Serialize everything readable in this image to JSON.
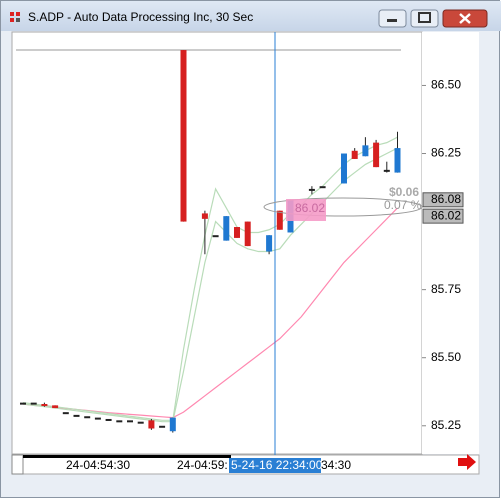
{
  "window": {
    "title": "S.ADP - Auto Data Processing Inc, 30 Sec"
  },
  "chart_data": {
    "type": "candlestick",
    "categories": [
      null,
      null,
      null,
      null,
      null,
      null,
      null,
      "24-04:54:30",
      null,
      null,
      null,
      null,
      null,
      null,
      null,
      "24-04:59:",
      null,
      null,
      null,
      null,
      null,
      null,
      null,
      "5-24-16 22:34:00",
      null,
      null,
      null,
      null,
      null,
      "34:30",
      null,
      null,
      null,
      null,
      null,
      null
    ],
    "open": [
      85.335,
      85.335,
      85.33,
      85.325,
      85.3,
      85.29,
      85.285,
      85.28,
      85.275,
      85.27,
      85.27,
      85.265,
      85.27,
      85.25,
      85.23,
      86.63,
      null,
      86.03,
      85.95,
      85.93,
      85.98,
      86.0,
      null,
      85.89,
      86.04,
      85.96,
      null,
      86.12,
      86.13,
      null,
      86.14,
      86.26,
      86.24,
      86.29,
      86.19,
      86.18
    ],
    "high": [
      85.335,
      85.335,
      85.335,
      85.325,
      85.3,
      85.29,
      85.285,
      85.28,
      85.275,
      85.27,
      85.27,
      85.265,
      85.275,
      85.25,
      85.28,
      86.63,
      null,
      86.04,
      85.95,
      86.02,
      85.98,
      86.0,
      null,
      85.95,
      86.04,
      86.08,
      null,
      86.13,
      86.13,
      null,
      86.25,
      86.27,
      86.31,
      86.3,
      86.22,
      86.33
    ],
    "low": [
      85.335,
      85.335,
      85.32,
      85.315,
      85.3,
      85.29,
      85.285,
      85.28,
      85.275,
      85.27,
      85.27,
      85.265,
      85.235,
      85.25,
      85.225,
      86.0,
      null,
      85.88,
      85.95,
      85.93,
      85.94,
      85.91,
      null,
      85.88,
      85.97,
      85.96,
      null,
      86.1,
      86.13,
      null,
      86.14,
      86.23,
      86.24,
      86.2,
      86.18,
      86.18
    ],
    "close": [
      85.335,
      85.335,
      85.325,
      85.315,
      85.3,
      85.29,
      85.285,
      85.28,
      85.275,
      85.27,
      85.27,
      85.265,
      85.24,
      85.25,
      85.28,
      86.0,
      null,
      86.01,
      85.95,
      86.02,
      85.94,
      85.91,
      null,
      85.95,
      85.97,
      86.08,
      null,
      86.12,
      86.13,
      null,
      86.25,
      86.23,
      86.28,
      86.2,
      86.19,
      86.27
    ],
    "up_color": "#1f78d1",
    "down_color": "#d62020",
    "series": [
      {
        "color": "#ff88b0",
        "values": [
          85.33,
          85.325,
          85.322,
          85.318,
          85.314,
          85.31,
          85.306,
          85.302,
          85.298,
          85.295,
          85.292,
          85.289,
          85.286,
          85.283,
          85.28,
          85.3,
          85.33,
          85.36,
          85.39,
          85.42,
          85.45,
          85.48,
          85.51,
          85.54,
          85.57,
          85.61,
          85.65,
          85.7,
          85.75,
          85.8,
          85.85,
          85.89,
          85.93,
          85.97,
          86.01,
          86.05
        ]
      },
      {
        "color": "#b9dcb9",
        "values": [
          85.335,
          85.33,
          85.325,
          85.32,
          85.315,
          85.31,
          85.305,
          85.3,
          85.295,
          85.29,
          85.285,
          85.28,
          85.275,
          85.27,
          85.27,
          85.53,
          85.75,
          85.95,
          86.12,
          86.05,
          85.98,
          85.96,
          85.96,
          85.97,
          85.99,
          86.03,
          86.06,
          86.1,
          86.13,
          86.17,
          86.21,
          86.24,
          86.26,
          86.28,
          86.29,
          86.31
        ]
      },
      {
        "color": "#b9dcb9",
        "values": [
          85.33,
          85.325,
          85.32,
          85.315,
          85.31,
          85.305,
          85.3,
          85.295,
          85.29,
          85.285,
          85.28,
          85.275,
          85.27,
          85.265,
          85.265,
          85.45,
          85.65,
          85.85,
          86.0,
          85.96,
          85.92,
          85.9,
          85.89,
          85.89,
          85.9,
          85.95,
          85.99,
          86.03,
          86.07,
          86.11,
          86.15,
          86.18,
          86.21,
          86.23,
          86.25,
          86.27
        ]
      }
    ],
    "ylim": [
      85.15,
      86.7
    ],
    "yticks": [
      {
        "value": 85.25,
        "label": "85.25"
      },
      {
        "value": 85.5,
        "label": "85.50"
      },
      {
        "value": 85.75,
        "label": "85.75"
      },
      {
        "value": 86.25,
        "label": "86.25"
      },
      {
        "value": 86.5,
        "label": "86.50"
      }
    ],
    "price_labels": [
      {
        "value": 86.08,
        "label": "86.08"
      },
      {
        "value": 86.02,
        "label": "86.02"
      }
    ],
    "annotations": {
      "change": "$0.06",
      "change_pct": "0.07 %",
      "order_label": "86.02"
    }
  }
}
